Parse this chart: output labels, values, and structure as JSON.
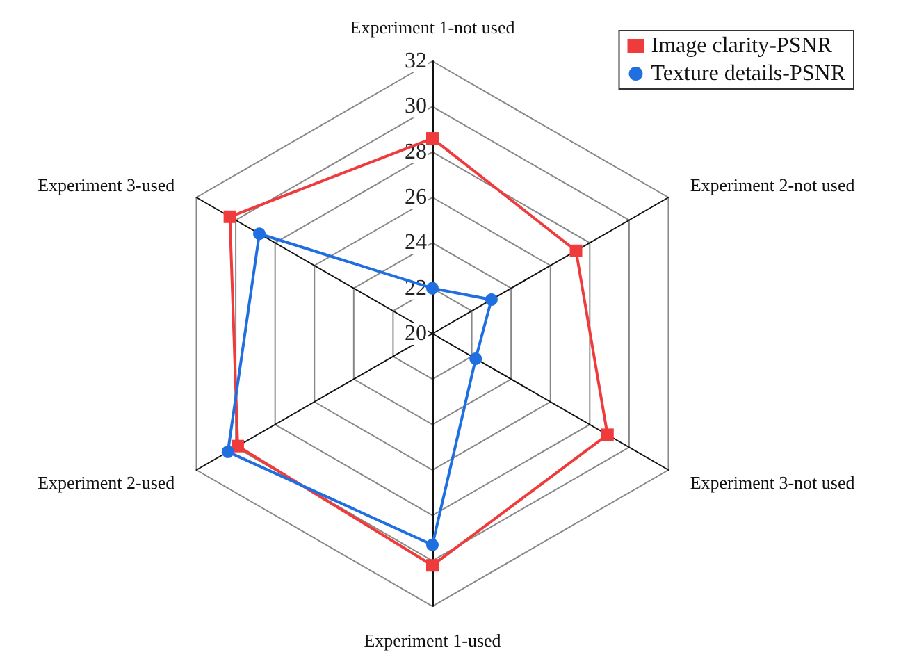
{
  "chart_data": {
    "type": "radar",
    "categories": [
      "Experiment 1-not used",
      "Experiment 2-not used",
      "Experiment 3-not used",
      "Experiment 1-used",
      "Experiment 2-used",
      "Experiment 3-used"
    ],
    "series": [
      {
        "name": "Image clarity-PSNR",
        "color": "#ef3b3b",
        "marker": "square",
        "values": [
          28.6,
          27.3,
          28.9,
          30.2,
          29.9,
          30.3
        ]
      },
      {
        "name": "Texture details-PSNR",
        "color": "#1f6fe0",
        "marker": "circle",
        "values": [
          22.0,
          23.0,
          22.2,
          29.3,
          30.4,
          28.8
        ]
      }
    ],
    "ylim": [
      20,
      32
    ],
    "yticks": [
      20,
      22,
      24,
      26,
      28,
      30,
      32
    ],
    "legend": "top right"
  }
}
